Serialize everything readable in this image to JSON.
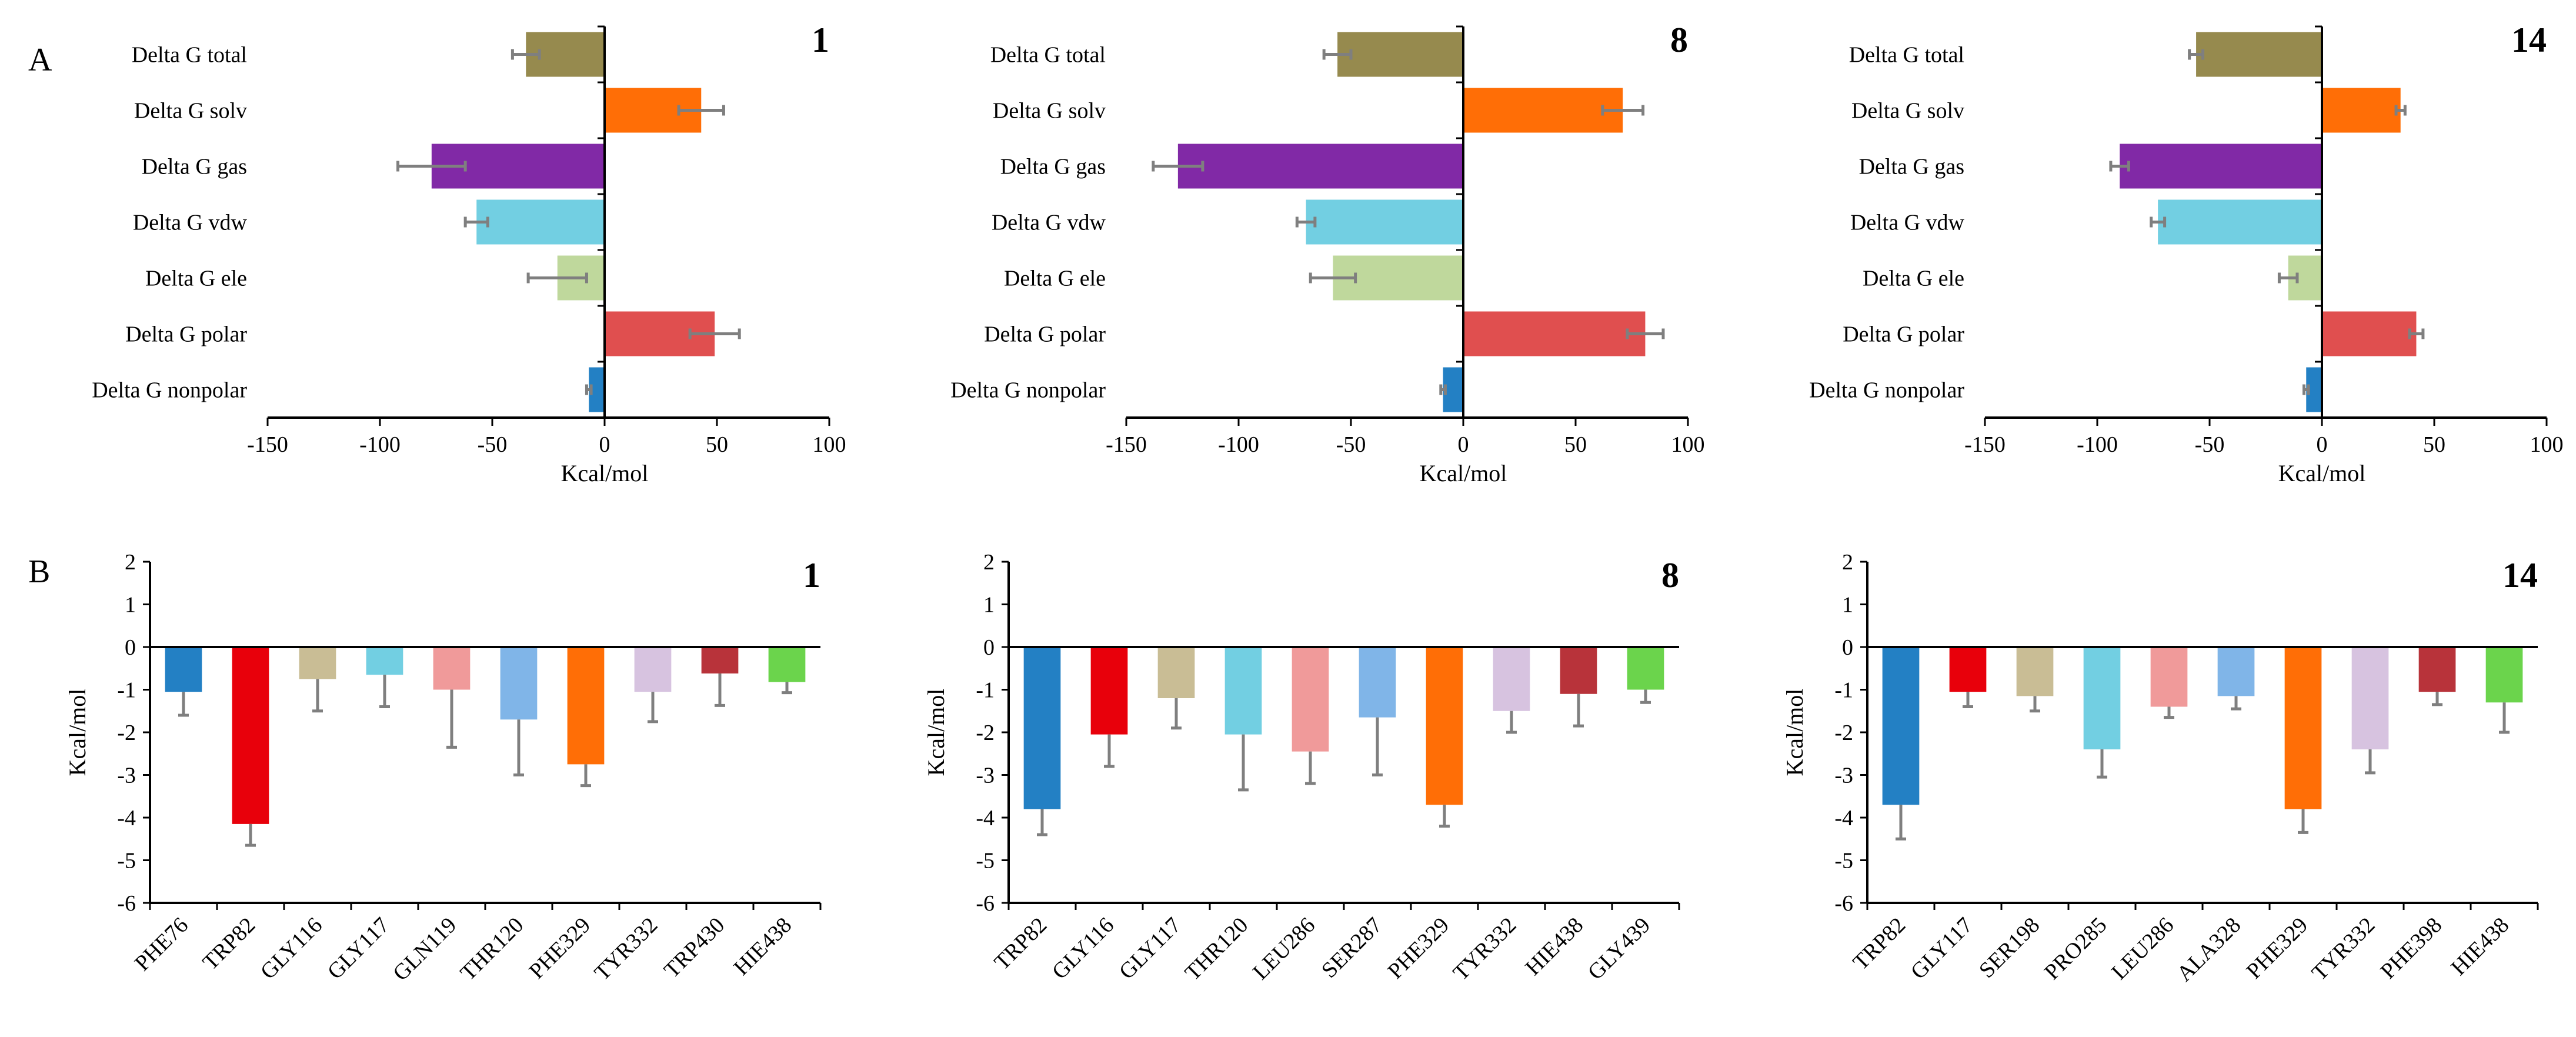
{
  "panel_labels": {
    "a": "A",
    "b": "B"
  },
  "chart_data": [
    {
      "type": "bar",
      "orientation": "horizontal",
      "title": "1",
      "xlabel": "Kcal/mol",
      "xlim": [
        -150,
        100
      ],
      "xticks": [
        "-150",
        "-100",
        "-50",
        "0",
        "50",
        "100"
      ],
      "categories": [
        "Delta G total",
        "Delta G solv",
        "Delta G gas",
        "Delta G vdw",
        "Delta G ele",
        "Delta G polar",
        "Delta G nonpolar"
      ],
      "values": [
        -35,
        43,
        -77,
        -57,
        -21,
        49,
        -7
      ],
      "errors": [
        6,
        10,
        15,
        5,
        13,
        11,
        1
      ],
      "colors": [
        "#968a4e",
        "#ff6e06",
        "#8129a6",
        "#72cfe2",
        "#bfd89c",
        "#e04f4f",
        "#2380c4"
      ],
      "grid": false,
      "legend": "none"
    },
    {
      "type": "bar",
      "orientation": "horizontal",
      "title": "8",
      "xlabel": "Kcal/mol",
      "xlim": [
        -150,
        100
      ],
      "xticks": [
        "-150",
        "-100",
        "-50",
        "0",
        "50",
        "100"
      ],
      "categories": [
        "Delta G total",
        "Delta G solv",
        "Delta G gas",
        "Delta G vdw",
        "Delta G ele",
        "Delta G polar",
        "Delta G nonpolar"
      ],
      "values": [
        -56,
        71,
        -127,
        -70,
        -58,
        81,
        -9
      ],
      "errors": [
        6,
        9,
        11,
        4,
        10,
        8,
        1
      ],
      "colors": [
        "#968a4e",
        "#ff6e06",
        "#8129a6",
        "#72cfe2",
        "#bfd89c",
        "#e04f4f",
        "#2380c4"
      ],
      "grid": false,
      "legend": "none"
    },
    {
      "type": "bar",
      "orientation": "horizontal",
      "title": "14",
      "xlabel": "Kcal/mol",
      "xlim": [
        -150,
        100
      ],
      "xticks": [
        "-150",
        "-100",
        "-50",
        "0",
        "50",
        "100"
      ],
      "categories": [
        "Delta G total",
        "Delta G solv",
        "Delta G gas",
        "Delta G vdw",
        "Delta G ele",
        "Delta G polar",
        "Delta G nonpolar"
      ],
      "values": [
        -56,
        35,
        -90,
        -73,
        -15,
        42,
        -7
      ],
      "errors": [
        3,
        2,
        4,
        3,
        4,
        3,
        1
      ],
      "colors": [
        "#968a4e",
        "#ff6e06",
        "#8129a6",
        "#72cfe2",
        "#bfd89c",
        "#e04f4f",
        "#2380c4"
      ],
      "grid": false,
      "legend": "none"
    },
    {
      "type": "bar",
      "orientation": "vertical",
      "title": "1",
      "ylabel": "Kcal/mol",
      "ylim": [
        -6,
        2
      ],
      "yticks": [
        "2",
        "1",
        "0",
        "-1",
        "-2",
        "-3",
        "-4",
        "-5",
        "-6"
      ],
      "categories": [
        "PHE76",
        "TRP82",
        "GLY116",
        "GLY117",
        "GLN119",
        "THR120",
        "PHE329",
        "TYR332",
        "TRP430",
        "HIE438"
      ],
      "values": [
        -1.05,
        -4.15,
        -0.75,
        -0.65,
        -1.0,
        -1.7,
        -2.75,
        -1.05,
        -0.62,
        -0.82
      ],
      "errors": [
        0.55,
        0.5,
        0.75,
        0.75,
        1.35,
        1.3,
        0.5,
        0.7,
        0.75,
        0.25
      ],
      "colors": [
        "#2380c4",
        "#e8000b",
        "#c9bd95",
        "#72cfe2",
        "#f09a9a",
        "#80b5e8",
        "#ff6e06",
        "#d7c3e0",
        "#b8333a",
        "#6bd44c"
      ],
      "grid": false,
      "legend": "none"
    },
    {
      "type": "bar",
      "orientation": "vertical",
      "title": "8",
      "ylabel": "Kcal/mol",
      "ylim": [
        -6,
        2
      ],
      "yticks": [
        "2",
        "1",
        "0",
        "-1",
        "-2",
        "-3",
        "-4",
        "-5",
        "-6"
      ],
      "categories": [
        "TRP82",
        "GLY116",
        "GLY117",
        "THR120",
        "LEU286",
        "SER287",
        "PHE329",
        "TYR332",
        "HIE438",
        "GLY439"
      ],
      "values": [
        -3.8,
        -2.05,
        -1.2,
        -2.05,
        -2.45,
        -1.65,
        -3.7,
        -1.5,
        -1.1,
        -1.0
      ],
      "errors": [
        0.6,
        0.75,
        0.7,
        1.3,
        0.75,
        1.35,
        0.5,
        0.5,
        0.75,
        0.3
      ],
      "colors": [
        "#2380c4",
        "#e8000b",
        "#c9bd95",
        "#72cfe2",
        "#f09a9a",
        "#80b5e8",
        "#ff6e06",
        "#d7c3e0",
        "#b8333a",
        "#6bd44c"
      ],
      "grid": false,
      "legend": "none"
    },
    {
      "type": "bar",
      "orientation": "vertical",
      "title": "14",
      "ylabel": "Kcal/mol",
      "ylim": [
        -6,
        2
      ],
      "yticks": [
        "2",
        "1",
        "0",
        "-1",
        "-2",
        "-3",
        "-4",
        "-5",
        "-6"
      ],
      "categories": [
        "TRP82",
        "GLY117",
        "SER198",
        "PRO285",
        "LEU286",
        "ALA328",
        "PHE329",
        "TYR332",
        "PHE398",
        "HIE438"
      ],
      "values": [
        -3.7,
        -1.05,
        -1.15,
        -2.4,
        -1.4,
        -1.15,
        -3.8,
        -2.4,
        -1.05,
        -1.3
      ],
      "errors": [
        0.8,
        0.35,
        0.35,
        0.65,
        0.25,
        0.3,
        0.55,
        0.55,
        0.3,
        0.7
      ],
      "colors": [
        "#2380c4",
        "#e8000b",
        "#c9bd95",
        "#72cfe2",
        "#f09a9a",
        "#80b5e8",
        "#ff6e06",
        "#d7c3e0",
        "#b8333a",
        "#6bd44c"
      ],
      "grid": false,
      "legend": "none"
    }
  ]
}
